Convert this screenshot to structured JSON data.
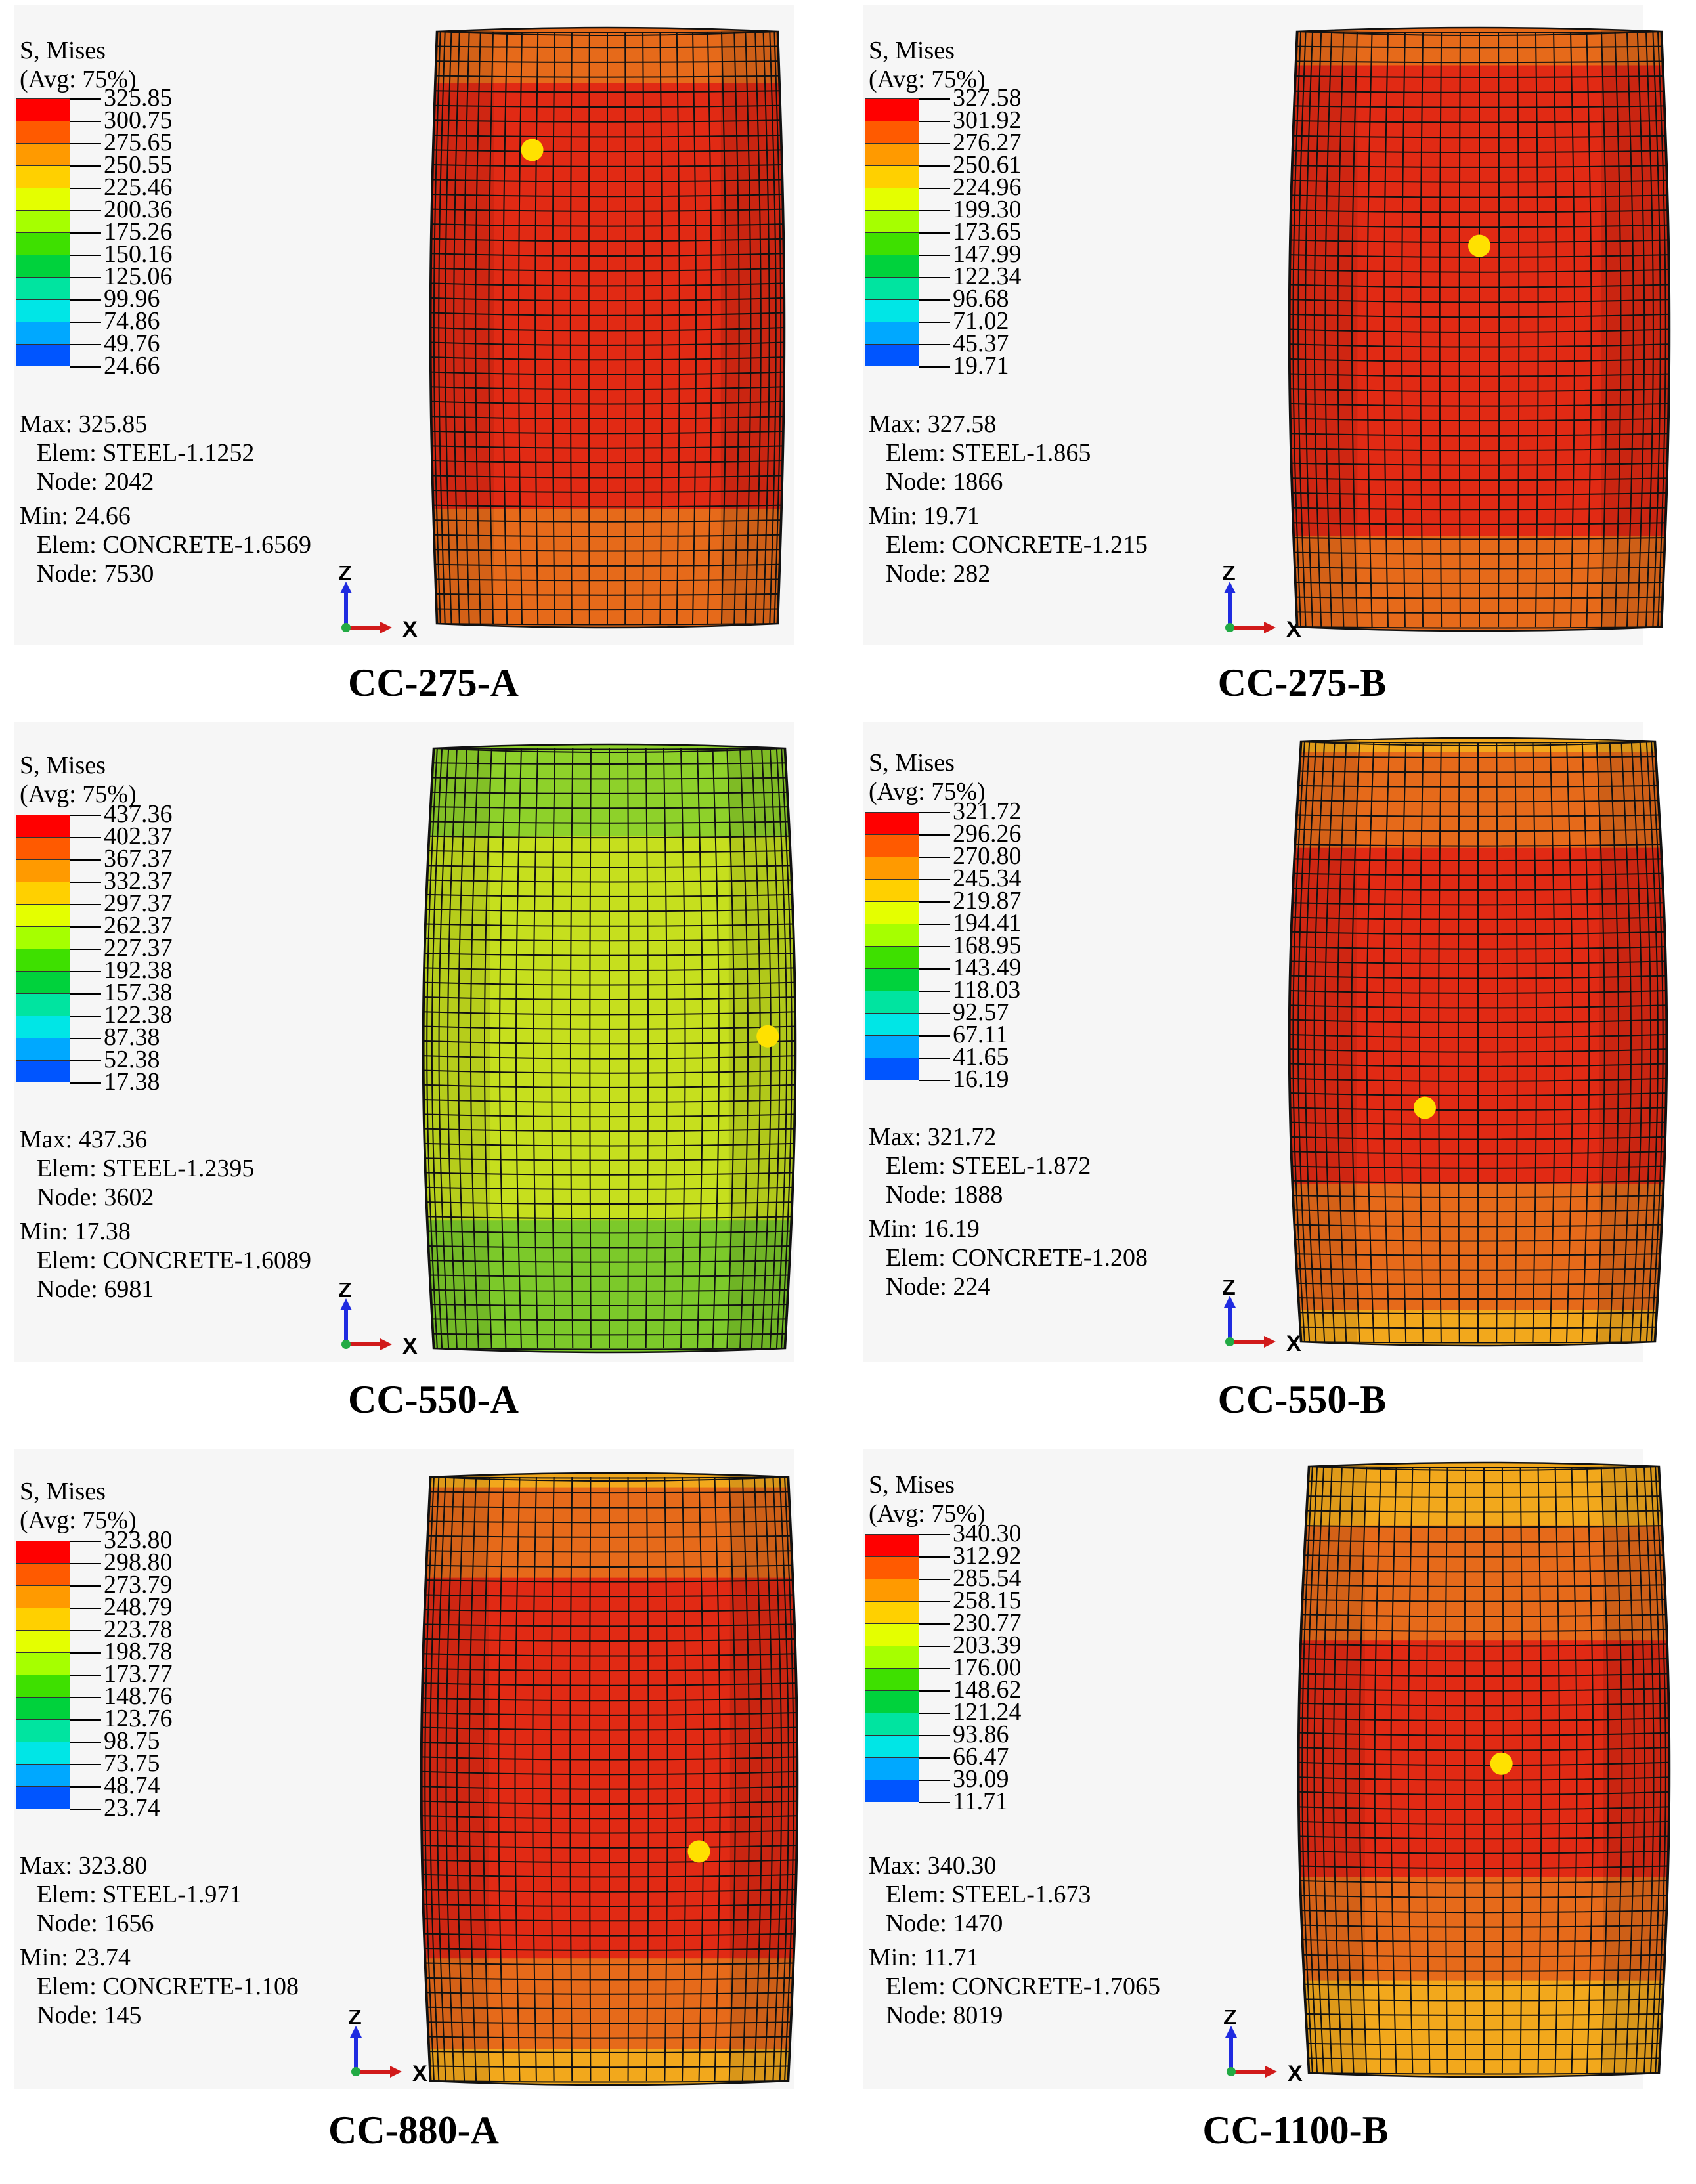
{
  "panels": [
    {
      "caption": "CC-275-A",
      "legend_title_1": "S, Mises",
      "legend_title_2": "(Avg: 75%)",
      "legend_values": [
        "325.85",
        "300.75",
        "275.65",
        "250.55",
        "225.46",
        "200.36",
        "175.26",
        "150.16",
        "125.06",
        "99.96",
        "74.86",
        "49.76",
        "24.66"
      ],
      "max_label": "Max: 325.85",
      "max_elem": "Elem: STEEL-1.1252",
      "max_node": "Node: 2042",
      "min_label": "Min: 24.66",
      "min_elem": "Elem: CONCRETE-1.6569",
      "min_node": "Node: 7530",
      "axis_z": "Z",
      "axis_x": "X",
      "bands": [
        {
          "from": 0.0,
          "to": 0.1,
          "color": "#e66a1a"
        },
        {
          "from": 0.1,
          "to": 0.82,
          "color": "#e12a14"
        },
        {
          "from": 0.82,
          "to": 1.0,
          "color": "#e66a1a"
        }
      ],
      "marker": {
        "u": 0.28,
        "v": 0.2
      }
    },
    {
      "caption": "CC-275-B",
      "legend_title_1": "S, Mises",
      "legend_title_2": "(Avg: 75%)",
      "legend_values": [
        "327.58",
        "301.92",
        "276.27",
        "250.61",
        "224.96",
        "199.30",
        "173.65",
        "147.99",
        "122.34",
        "96.68",
        "71.02",
        "45.37",
        "19.71"
      ],
      "max_label": "Max: 327.58",
      "max_elem": "Elem: STEEL-1.865",
      "max_node": "Node: 1866",
      "min_label": "Min: 19.71",
      "min_elem": "Elem: CONCRETE-1.215",
      "min_node": "Node: 282",
      "axis_z": "Z",
      "axis_x": "X",
      "bands": [
        {
          "from": 0.0,
          "to": 0.07,
          "color": "#e66a1a"
        },
        {
          "from": 0.07,
          "to": 0.86,
          "color": "#e12a14"
        },
        {
          "from": 0.86,
          "to": 1.0,
          "color": "#e66a1a"
        }
      ],
      "marker": {
        "u": 0.5,
        "v": 0.36
      }
    },
    {
      "caption": "CC-550-A",
      "legend_title_1": "S, Mises",
      "legend_title_2": "(Avg: 75%)",
      "legend_values": [
        "437.36",
        "402.37",
        "367.37",
        "332.37",
        "297.37",
        "262.37",
        "227.37",
        "192.38",
        "157.38",
        "122.38",
        "87.38",
        "52.38",
        "17.38"
      ],
      "max_label": "Max: 437.36",
      "max_elem": "Elem: STEEL-1.2395",
      "max_node": "Node: 3602",
      "min_label": "Min: 17.38",
      "min_elem": "Elem: CONCRETE-1.6089",
      "min_node": "Node: 6981",
      "axis_z": "Z",
      "axis_x": "X",
      "bands": [
        {
          "from": 0.0,
          "to": 0.16,
          "color": "#8ed12a"
        },
        {
          "from": 0.16,
          "to": 0.8,
          "color": "#c6df1e"
        },
        {
          "from": 0.8,
          "to": 1.0,
          "color": "#7cc92a"
        }
      ],
      "marker": {
        "u": 0.95,
        "v": 0.48
      }
    },
    {
      "caption": "CC-550-B",
      "legend_title_1": "S, Mises",
      "legend_title_2": "(Avg: 75%)",
      "legend_values": [
        "321.72",
        "296.26",
        "270.80",
        "245.34",
        "219.87",
        "194.41",
        "168.95",
        "143.49",
        "118.03",
        "92.57",
        "67.11",
        "41.65",
        "16.19"
      ],
      "max_label": "Max: 321.72",
      "max_elem": "Elem: STEEL-1.872",
      "max_node": "Node: 1888",
      "min_label": "Min: 16.19",
      "min_elem": "Elem: CONCRETE-1.208",
      "min_node": "Node: 224",
      "axis_z": "Z",
      "axis_x": "X",
      "bands": [
        {
          "from": 0.0,
          "to": 0.03,
          "color": "#f2a81c"
        },
        {
          "from": 0.03,
          "to": 0.19,
          "color": "#e66a1a"
        },
        {
          "from": 0.19,
          "to": 0.75,
          "color": "#e12a14"
        },
        {
          "from": 0.75,
          "to": 0.96,
          "color": "#e66a1a"
        },
        {
          "from": 0.96,
          "to": 1.0,
          "color": "#f2a81c"
        }
      ],
      "marker": {
        "u": 0.35,
        "v": 0.61
      }
    },
    {
      "caption": "CC-880-A",
      "legend_title_1": "S, Mises",
      "legend_title_2": "(Avg: 75%)",
      "legend_values": [
        "323.80",
        "298.80",
        "273.79",
        "248.79",
        "223.78",
        "198.78",
        "173.77",
        "148.76",
        "123.76",
        "98.75",
        "73.75",
        "48.74",
        "23.74"
      ],
      "max_label": "Max: 323.80",
      "max_elem": "Elem: STEEL-1.971",
      "max_node": "Node: 1656",
      "min_label": "Min: 23.74",
      "min_elem": "Elem: CONCRETE-1.108",
      "min_node": "Node: 145",
      "axis_z": "Z",
      "axis_x": "X",
      "bands": [
        {
          "from": 0.0,
          "to": 0.03,
          "color": "#f2a81c"
        },
        {
          "from": 0.03,
          "to": 0.18,
          "color": "#e66a1a"
        },
        {
          "from": 0.18,
          "to": 0.81,
          "color": "#e12a14"
        },
        {
          "from": 0.81,
          "to": 0.96,
          "color": "#e66a1a"
        },
        {
          "from": 0.96,
          "to": 1.0,
          "color": "#f2a81c"
        }
      ],
      "marker": {
        "u": 0.75,
        "v": 0.62
      }
    },
    {
      "caption": "CC-1100-B",
      "legend_title_1": "S, Mises",
      "legend_title_2": "(Avg: 75%)",
      "legend_values": [
        "340.30",
        "312.92",
        "285.54",
        "258.15",
        "230.77",
        "203.39",
        "176.00",
        "148.62",
        "121.24",
        "93.86",
        "66.47",
        "39.09",
        "11.71"
      ],
      "max_label": "Max: 340.30",
      "max_elem": "Elem: STEEL-1.673",
      "max_node": "Node: 1470",
      "min_label": "Min: 11.71",
      "min_elem": "Elem: CONCRETE-1.7065",
      "min_node": "Node: 8019",
      "axis_z": "Z",
      "axis_x": "X",
      "bands": [
        {
          "from": 0.0,
          "to": 0.11,
          "color": "#f2a81c"
        },
        {
          "from": 0.11,
          "to": 0.3,
          "color": "#e66a1a"
        },
        {
          "from": 0.3,
          "to": 0.69,
          "color": "#e12a14"
        },
        {
          "from": 0.69,
          "to": 0.86,
          "color": "#e66a1a"
        },
        {
          "from": 0.86,
          "to": 1.0,
          "color": "#f2a81c"
        }
      ],
      "marker": {
        "u": 0.55,
        "v": 0.49
      }
    }
  ],
  "legend_colors": [
    "#ff0000",
    "#ff5a00",
    "#ff9a00",
    "#ffd000",
    "#e4ff00",
    "#a6ff00",
    "#3ee000",
    "#00d23c",
    "#00e4a0",
    "#00e6e6",
    "#00a8ff",
    "#0055ff",
    "#0000ff"
  ],
  "marker_color": "#ffe100",
  "grid_color": "#111111"
}
